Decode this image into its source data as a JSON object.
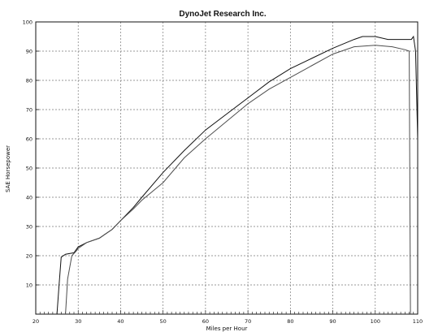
{
  "chart_data": {
    "type": "line",
    "title": "DynoJet Research Inc.",
    "xlabel": "Miles per Hour",
    "ylabel": "SAE Horsepower",
    "xlim": [
      20,
      110
    ],
    "ylim": [
      0,
      100
    ],
    "xticks": [
      20,
      30,
      40,
      50,
      60,
      70,
      80,
      90,
      100,
      110
    ],
    "yticks": [
      10,
      20,
      30,
      40,
      50,
      60,
      70,
      80,
      90,
      100
    ],
    "grid": true,
    "colors": {
      "series1": "#111111",
      "series2": "#4d4d4d",
      "grid": "#7a7a7a"
    },
    "series": [
      {
        "values": [
          [
            25.0,
            0
          ],
          [
            25.5,
            10
          ],
          [
            26.0,
            19.5
          ],
          [
            27.0,
            20.5
          ],
          [
            29.0,
            21
          ],
          [
            30.0,
            23
          ],
          [
            32.0,
            24.5
          ],
          [
            35.0,
            26
          ],
          [
            38.0,
            29
          ],
          [
            40.0,
            32
          ],
          [
            43.0,
            36.5
          ],
          [
            45.0,
            40
          ],
          [
            50.0,
            48.5
          ],
          [
            55.0,
            56
          ],
          [
            60.0,
            63
          ],
          [
            65.0,
            68.5
          ],
          [
            70.0,
            74
          ],
          [
            75.0,
            79.5
          ],
          [
            80.0,
            84
          ],
          [
            85.0,
            87.5
          ],
          [
            90.0,
            91
          ],
          [
            95.0,
            94
          ],
          [
            97.0,
            95
          ],
          [
            100.0,
            95
          ],
          [
            103.0,
            94
          ],
          [
            106.0,
            94
          ],
          [
            108.5,
            94
          ],
          [
            109.0,
            95
          ],
          [
            109.5,
            90
          ],
          [
            110.0,
            60
          ]
        ]
      },
      {
        "values": [
          [
            27.0,
            0
          ],
          [
            27.5,
            12
          ],
          [
            28.5,
            20
          ],
          [
            29.5,
            21.5
          ],
          [
            30.0,
            22.5
          ],
          [
            32.0,
            24.5
          ],
          [
            35.0,
            26
          ],
          [
            38.0,
            29
          ],
          [
            40.0,
            32
          ],
          [
            43.0,
            36
          ],
          [
            45.0,
            39
          ],
          [
            50.0,
            45
          ],
          [
            55.0,
            53.5
          ],
          [
            60.0,
            60
          ],
          [
            65.0,
            66
          ],
          [
            70.0,
            72
          ],
          [
            75.0,
            77
          ],
          [
            80.0,
            81
          ],
          [
            85.0,
            85
          ],
          [
            90.0,
            89
          ],
          [
            95.0,
            91.5
          ],
          [
            100.0,
            92
          ],
          [
            104.0,
            91.5
          ],
          [
            107.0,
            90.5
          ],
          [
            108.0,
            90
          ],
          [
            108.3,
            0
          ]
        ]
      }
    ]
  }
}
